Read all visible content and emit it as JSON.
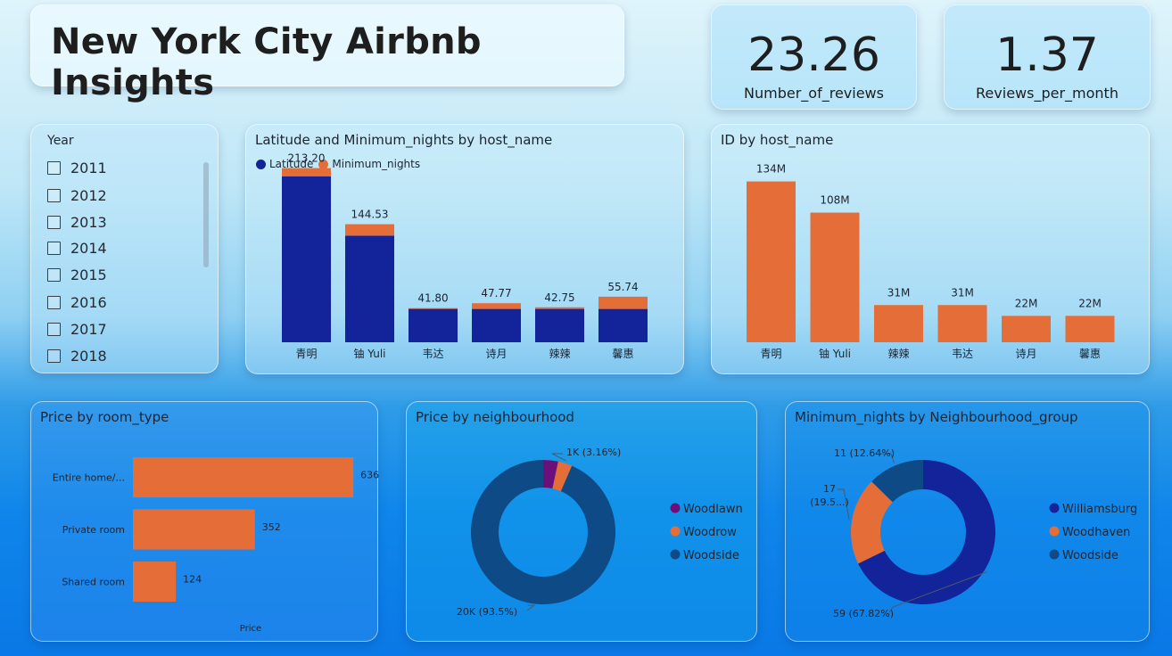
{
  "title": "New York City Airbnb Insights",
  "kpis": [
    {
      "value": "23.26",
      "label": "Number_of_reviews"
    },
    {
      "value": "1.37",
      "label": "Reviews_per_month"
    }
  ],
  "year_slicer": {
    "title": "Year",
    "items": [
      "2011",
      "2012",
      "2013",
      "2014",
      "2015",
      "2016",
      "2017",
      "2018"
    ]
  },
  "colors": {
    "navy": "#13239a",
    "orange": "#e56e38",
    "purple": "#6b0f7a",
    "steel": "#0e4a86"
  },
  "chart_data": [
    {
      "type": "bar",
      "stacked": true,
      "title": "Latitude and Minimum_nights by host_name",
      "legend": [
        "Latitude",
        "Minimum_nights"
      ],
      "legend_position": "top-left",
      "categories": [
        "青明",
        "铀 Yuli",
        "韦达",
        "诗月",
        "辣辣",
        "馨惠"
      ],
      "series": [
        {
          "name": "Latitude",
          "color": "#13239a",
          "values": [
            203.2,
            130.5,
            40.8,
            40.8,
            40.8,
            40.8
          ]
        },
        {
          "name": "Minimum_nights",
          "color": "#e56e38",
          "values": [
            10,
            14,
            1,
            7,
            2,
            15
          ]
        }
      ],
      "totals": [
        "213.20",
        "144.53",
        "41.80",
        "47.77",
        "42.75",
        "55.74"
      ],
      "ylim": [
        0,
        240
      ]
    },
    {
      "type": "bar",
      "title": "ID by host_name",
      "categories": [
        "青明",
        "铀 Yuli",
        "辣辣",
        "韦达",
        "诗月",
        "馨惠"
      ],
      "series": [
        {
          "name": "",
          "color": "#e56e38",
          "values": [
            134,
            108,
            31,
            31,
            22,
            22
          ]
        }
      ],
      "labels": [
        "134M",
        "108M",
        "31M",
        "31M",
        "22M",
        "22M"
      ],
      "ylim": [
        0,
        150
      ]
    },
    {
      "type": "bar",
      "orientation": "horizontal",
      "title": "Price by room_type",
      "categories": [
        "Entire home/...",
        "Private room",
        "Shared room"
      ],
      "series": [
        {
          "name": "",
          "color": "#e56e38",
          "values": [
            636,
            352,
            124
          ]
        }
      ],
      "labels": [
        "636",
        "352",
        "124"
      ],
      "xlabel": "Price",
      "xlim": [
        0,
        700
      ]
    },
    {
      "type": "pie",
      "donut": true,
      "title": "Price by neighbourhood",
      "legend": [
        "Woodlawn",
        "Woodrow",
        "Woodside"
      ],
      "legend_position": "right",
      "slices": [
        {
          "name": "Woodlawn",
          "value": 3.34,
          "color": "#6b0f7a",
          "label": ""
        },
        {
          "name": "Woodrow",
          "value": 3.16,
          "color": "#e56e38",
          "label": "1K (3.16%)"
        },
        {
          "name": "Woodside",
          "value": 93.5,
          "color": "#0e4a86",
          "label": "20K (93.5%)"
        }
      ]
    },
    {
      "type": "pie",
      "donut": true,
      "title": "Minimum_nights by Neighbourhood_group",
      "legend": [
        "Williamsburg",
        "Woodhaven",
        "Woodside"
      ],
      "legend_position": "right",
      "slices": [
        {
          "name": "Williamsburg",
          "value": 67.82,
          "color": "#13239a",
          "label": "59 (67.82%)"
        },
        {
          "name": "Woodhaven",
          "value": 19.54,
          "color": "#e56e38",
          "label": "17 (19.5...)"
        },
        {
          "name": "Woodside",
          "value": 12.64,
          "color": "#0e4a86",
          "label": "11 (12.64%)"
        }
      ]
    }
  ]
}
